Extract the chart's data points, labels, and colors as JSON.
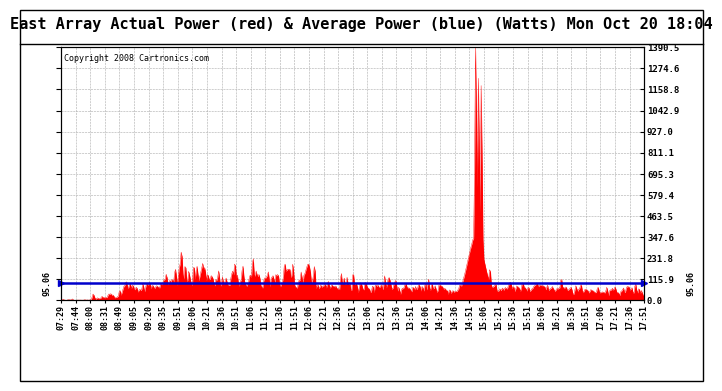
{
  "title": "East Array Actual Power (red) & Average Power (blue) (Watts) Mon Oct 20 18:04",
  "copyright": "Copyright 2008 Cartronics.com",
  "average_power": 95.06,
  "ymax": 1390.5,
  "yticks": [
    0.0,
    115.9,
    231.8,
    347.6,
    463.5,
    579.4,
    695.3,
    811.1,
    927.0,
    1042.9,
    1158.8,
    1274.6,
    1390.5
  ],
  "x_labels": [
    "07:29",
    "07:44",
    "08:00",
    "08:31",
    "08:49",
    "09:05",
    "09:20",
    "09:35",
    "09:51",
    "10:06",
    "10:21",
    "10:36",
    "10:51",
    "11:06",
    "11:21",
    "11:36",
    "11:51",
    "12:06",
    "12:21",
    "12:36",
    "12:51",
    "13:06",
    "13:21",
    "13:36",
    "13:51",
    "14:06",
    "14:21",
    "14:36",
    "14:51",
    "15:06",
    "15:21",
    "15:36",
    "15:51",
    "16:06",
    "16:21",
    "16:36",
    "16:51",
    "17:06",
    "17:21",
    "17:36",
    "17:51"
  ],
  "red_color": "#ff0000",
  "blue_color": "#0000cc",
  "grid_color": "#aaaaaa",
  "bg_color": "#ffffff",
  "title_fontsize": 11,
  "tick_fontsize": 6,
  "copyright_fontsize": 6
}
